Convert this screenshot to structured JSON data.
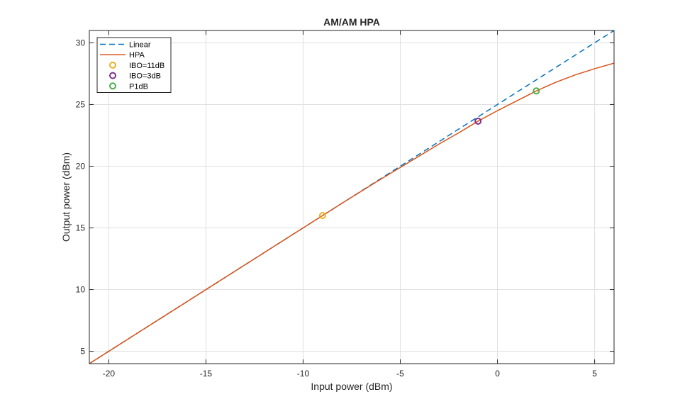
{
  "chart_data": {
    "type": "line",
    "title": "AM/AM HPA",
    "xlabel": "Input power (dBm)",
    "ylabel": "Output power (dBm)",
    "xlim": [
      -21,
      6
    ],
    "ylim": [
      4,
      31
    ],
    "xticks": [
      -20,
      -15,
      -10,
      -5,
      0,
      5
    ],
    "yticks": [
      5,
      10,
      15,
      20,
      25,
      30
    ],
    "grid": true,
    "legend_position": "top-left",
    "series": [
      {
        "name": "Linear",
        "style": "dashed",
        "color": "#0072BD",
        "x": [
          -21,
          6
        ],
        "y": [
          4,
          31
        ]
      },
      {
        "name": "HPA",
        "style": "solid",
        "color": "#D95319",
        "x": [
          -21,
          -18,
          -15,
          -12,
          -10,
          -8,
          -6,
          -5,
          -4,
          -3,
          -2,
          -1,
          0,
          1,
          2,
          3,
          4,
          5,
          6
        ],
        "y": [
          4.0,
          7.0,
          10.0,
          13.0,
          15.0,
          17.0,
          18.95,
          19.9,
          20.85,
          21.8,
          22.7,
          23.65,
          24.5,
          25.3,
          26.1,
          26.8,
          27.4,
          27.9,
          28.35
        ]
      }
    ],
    "markers": [
      {
        "name": "IBO=11dB",
        "color": "#EDB120",
        "x": -9,
        "y": 16.0
      },
      {
        "name": "IBO=3dB",
        "color": "#7E2F8E",
        "x": -1,
        "y": 23.65
      },
      {
        "name": "P1dB",
        "color": "#4DAF4A",
        "x": 2,
        "y": 26.1
      }
    ]
  }
}
